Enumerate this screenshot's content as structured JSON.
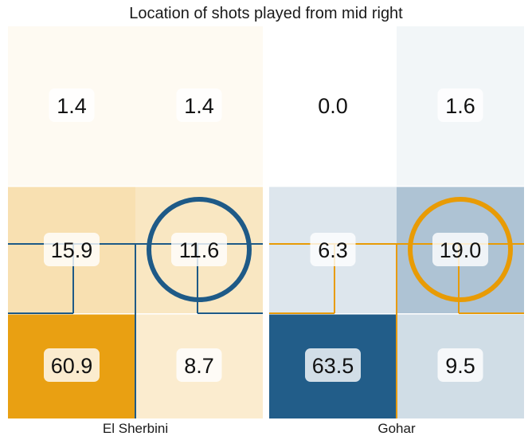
{
  "chart_data": {
    "type": "heatmap",
    "title": "Location of shots played from mid right",
    "panels": [
      {
        "name": "El Sherbini",
        "rows": [
          [
            1.4,
            1.4
          ],
          [
            15.9,
            11.6
          ],
          [
            60.9,
            8.7
          ]
        ],
        "labels": [
          [
            "1.4",
            "1.4"
          ],
          [
            "15.9",
            "11.6"
          ],
          [
            "60.9",
            "8.7"
          ]
        ],
        "base_color": "#E89B05",
        "line_color": "#1E5A87"
      },
      {
        "name": "Gohar",
        "rows": [
          [
            0.0,
            1.6
          ],
          [
            6.3,
            19.0
          ],
          [
            63.5,
            9.5
          ]
        ],
        "labels": [
          [
            "0.0",
            "1.6"
          ],
          [
            "6.3",
            "19.0"
          ],
          [
            "63.5",
            "9.5"
          ]
        ],
        "base_color": "#1E5A87",
        "line_color": "#E89B05"
      }
    ],
    "grid": false
  }
}
